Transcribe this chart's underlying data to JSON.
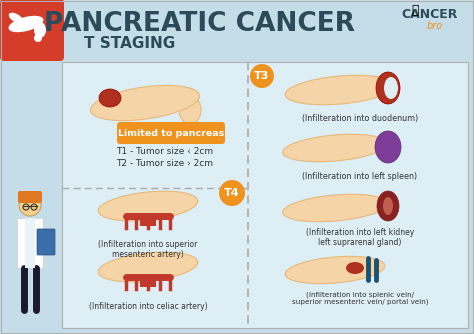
{
  "bg_color": "#c5dde8",
  "title": "PANCREATIC CANCER",
  "subtitle": "T STAGING",
  "title_color": "#2c4a5a",
  "subtitle_color": "#2c4a5a",
  "panel_bg": "#ddeef5",
  "divider_color": "#aaaaaa",
  "orange_color": "#f0921e",
  "orange_badge_text": "Limited to pancreas",
  "t1_text": "T1 - Tumor size ‹ 2cm",
  "t2_text": "T2 - Tumor size › 2cm",
  "t4_label": "T4",
  "t3_label": "T3",
  "left_panel_items": [
    "(Infilteration into superior\nmesenteric artery)",
    "(Infilteration into celiac artery)"
  ],
  "right_panel_items": [
    "(Infilteration into duodenum)",
    "(Infilteration into left spleen)",
    "(Infilteration into left kidney\nleft suprarenal gland)",
    "(Infilteration into splenic vein/\nsuperior mesenteric vein/ portal vein)"
  ],
  "red": "#c0392b",
  "dark_red": "#8b0000",
  "pancreas_color": "#f5d5a8",
  "pancreas_edge": "#e8b87a",
  "tumor_color": "#b03020",
  "spleen_color": "#7d3c98",
  "kidney_color": "#8b2020",
  "vein_blue": "#1a5276",
  "text_color": "#333333",
  "white": "#ffffff",
  "gray": "#777777",
  "header_red_bg": "#d63c2a",
  "panel_border": "#b0b0b0"
}
